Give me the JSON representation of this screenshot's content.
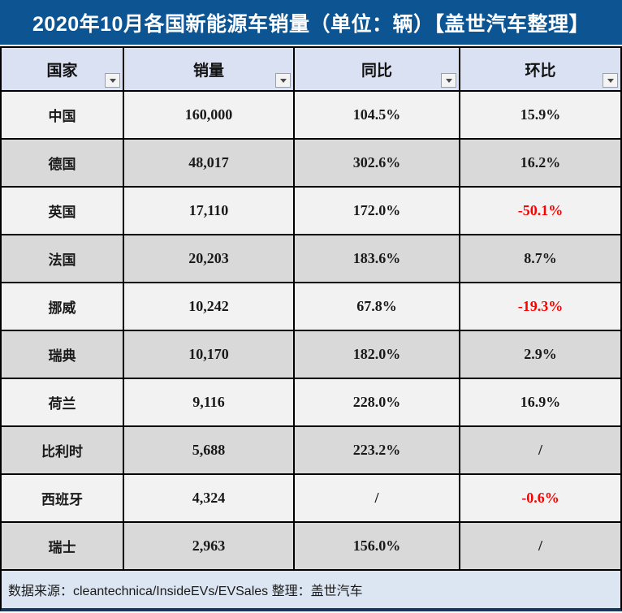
{
  "title": "2020年10月各国新能源车销量（单位：辆）【盖世汽车整理】",
  "footer": "数据来源：cleantechnica/InsideEVs/EVSales 整理：盖世汽车",
  "colors": {
    "title_bg": "#0d5493",
    "header_bg": "#d9e1f2",
    "row_light": "#f2f2f2",
    "row_dark": "#d9d9d9",
    "footer_bg": "#dce6f2",
    "negative_text": "#ff0000",
    "grid_border": "#000000"
  },
  "icons": {
    "filter_dropdown": "triangle-down"
  },
  "chart_data": {
    "type": "table",
    "title": "2020年10月各国新能源车销量（单位：辆）【盖世汽车整理】",
    "columns": [
      "国家",
      "销量",
      "同比",
      "环比"
    ],
    "rows": [
      [
        "中国",
        "160,000",
        "104.5%",
        "15.9%"
      ],
      [
        "德国",
        "48,017",
        "302.6%",
        "16.2%"
      ],
      [
        "英国",
        "17,110",
        "172.0%",
        "-50.1%"
      ],
      [
        "法国",
        "20,203",
        "183.6%",
        "8.7%"
      ],
      [
        "挪威",
        "10,242",
        "67.8%",
        "-19.3%"
      ],
      [
        "瑞典",
        "10,170",
        "182.0%",
        "2.9%"
      ],
      [
        "荷兰",
        "9,116",
        "228.0%",
        "16.9%"
      ],
      [
        "比利时",
        "5,688",
        "223.2%",
        "/"
      ],
      [
        "西班牙",
        "4,324",
        "/",
        "-0.6%"
      ],
      [
        "瑞士",
        "2,963",
        "156.0%",
        "/"
      ]
    ],
    "notes": "negative values rendered in red; '/' means no data",
    "source_line": "数据来源：cleantechnica/InsideEVs/EVSales 整理：盖世汽车"
  }
}
